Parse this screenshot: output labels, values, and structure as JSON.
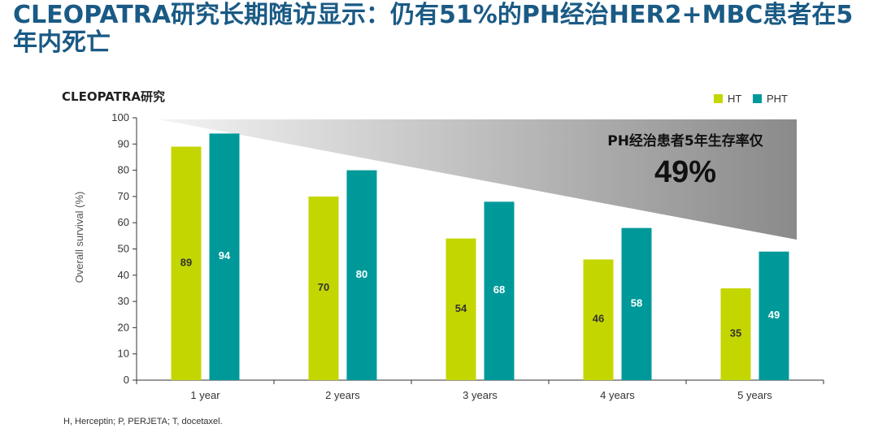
{
  "page": {
    "title": "CLEOPATRA研究长期随访显示：仍有51%的PH经治HER2+MBC患者在5年内死亡",
    "footnote": "H, Herceptin; P, PERJETA; T, docetaxel."
  },
  "chart_data": {
    "type": "bar",
    "title": "CLEOPATRA研究",
    "xlabel": "",
    "ylabel": "Overall survival (%)",
    "ylim": [
      0,
      100
    ],
    "yticks": [
      0,
      10,
      20,
      30,
      40,
      50,
      60,
      70,
      80,
      90,
      100
    ],
    "categories": [
      "1 year",
      "2 years",
      "3 years",
      "4 years",
      "5 years"
    ],
    "series": [
      {
        "name": "HT",
        "color": "#c4d600",
        "values": [
          89,
          70,
          54,
          46,
          35
        ]
      },
      {
        "name": "PHT",
        "color": "#00999a",
        "values": [
          94,
          80,
          68,
          58,
          49
        ]
      }
    ],
    "legend_position": "top-right",
    "grid": false,
    "annotation": {
      "text": "PH经治患者5年生存率仅",
      "value": "49%"
    }
  }
}
